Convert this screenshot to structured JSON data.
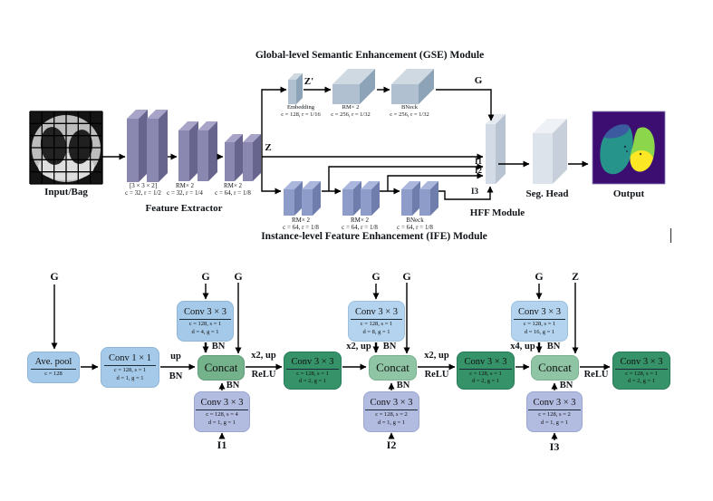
{
  "top": {
    "gse_title": "Global-level Semantic Enhancement (GSE) Module",
    "ife_title": "Instance-level Feature Enhancement (IFE) Module",
    "fe_title": "Feature Extractor",
    "input_label": "Input/Bag",
    "hff_label": "HFF Module",
    "seg_head_label": "Seg. Head",
    "output_label": "Output",
    "fe_blocks": [
      {
        "l1": "[3 × 3 × 2]",
        "l2": "c = 32, r = 1/2"
      },
      {
        "l1": "RM× 2",
        "l2": "c = 32, r = 1/4"
      },
      {
        "l1": "RM× 2",
        "l2": "c = 64, r = 1/8"
      }
    ],
    "gse_blocks": [
      {
        "l1": "Embedding",
        "l2": "c = 128, r = 1/16"
      },
      {
        "l1": "RM× 2",
        "l2": "c = 256, r = 1/32"
      },
      {
        "l1": "BNeck",
        "l2": "c = 256, r = 1/32"
      }
    ],
    "ife_blocks": [
      {
        "l1": "RM× 2",
        "l2": "c = 64, r = 1/8"
      },
      {
        "l1": "RM× 2",
        "l2": "c = 64, r = 1/8"
      },
      {
        "l1": "BNeck",
        "l2": "c = 64, r = 1/8"
      }
    ],
    "wires": {
      "z_prime": "Z'",
      "z": "Z",
      "g": "G",
      "i1": "I1",
      "i2": "I2",
      "i3": "I3"
    }
  },
  "bottom": {
    "boxes": {
      "avepool": {
        "t": "Ave. pool",
        "p1": "c = 128"
      },
      "conv1x1": {
        "t": "Conv 1 × 1",
        "p1": "c = 128, s = 1",
        "p2": "d = 1, g = 1"
      },
      "gconv1": {
        "t": "Conv 3 × 3",
        "p1": "c = 128, s = 1",
        "p2": "d = 4, g = 1"
      },
      "iconv1": {
        "t": "Conv 3 × 3",
        "p1": "c = 128, s = 4",
        "p2": "d = 1, g = 1"
      },
      "concat1": {
        "t": "Concat"
      },
      "dconv1": {
        "t": "Conv 3 × 3",
        "p1": "c = 128, s = 1",
        "p2": "d = 2, g = 1"
      },
      "gconv2": {
        "t": "Conv 3 × 3",
        "p1": "c = 128, s = 1",
        "p2": "d = 8, g = 1"
      },
      "iconv2": {
        "t": "Conv 3 × 3",
        "p1": "c = 128, s = 2",
        "p2": "d = 1, g = 1"
      },
      "concat2": {
        "t": "Concat"
      },
      "dconv2": {
        "t": "Conv 3 × 3",
        "p1": "c = 128, s = 1",
        "p2": "d = 2, g = 1"
      },
      "gconv3": {
        "t": "Conv 3 × 3",
        "p1": "c = 128, s = 1",
        "p2": "d = 16, g = 1"
      },
      "iconv3": {
        "t": "Conv 3 × 3",
        "p1": "c = 128, s = 2",
        "p2": "d = 1, g = 1"
      },
      "concat3": {
        "t": "Concat"
      },
      "dconv3": {
        "t": "Conv 3 × 3",
        "p1": "c = 128, s = 1",
        "p2": "d = 2, g = 1"
      }
    },
    "wires": {
      "g": "G",
      "z": "Z",
      "i1": "I1",
      "i2": "I2",
      "i3": "I3",
      "up": "up",
      "bn": "BN",
      "relu": "ReLU",
      "x2up": "x2, up",
      "x4up": "x4, up"
    }
  },
  "colors": {
    "fe_slab": "#8a87b0",
    "ife_slab": "#8e9cc9",
    "gse_slab": "#b1c0d0",
    "hff_slab": "#d3dbe7",
    "seg_slab": "#dde3ea",
    "light_blue_box": "#a5c9e8",
    "lavender_box": "#b2bbe0",
    "concat_green": "#74b28b",
    "concat_green_light": "#8fc5a4",
    "conv_dark_green": "#369268",
    "output_bg": "#3c0e72",
    "output_teal": "#27948b",
    "output_blue": "#3b5aa0",
    "output_green": "#8cd64c",
    "output_yellow": "#fce724"
  }
}
